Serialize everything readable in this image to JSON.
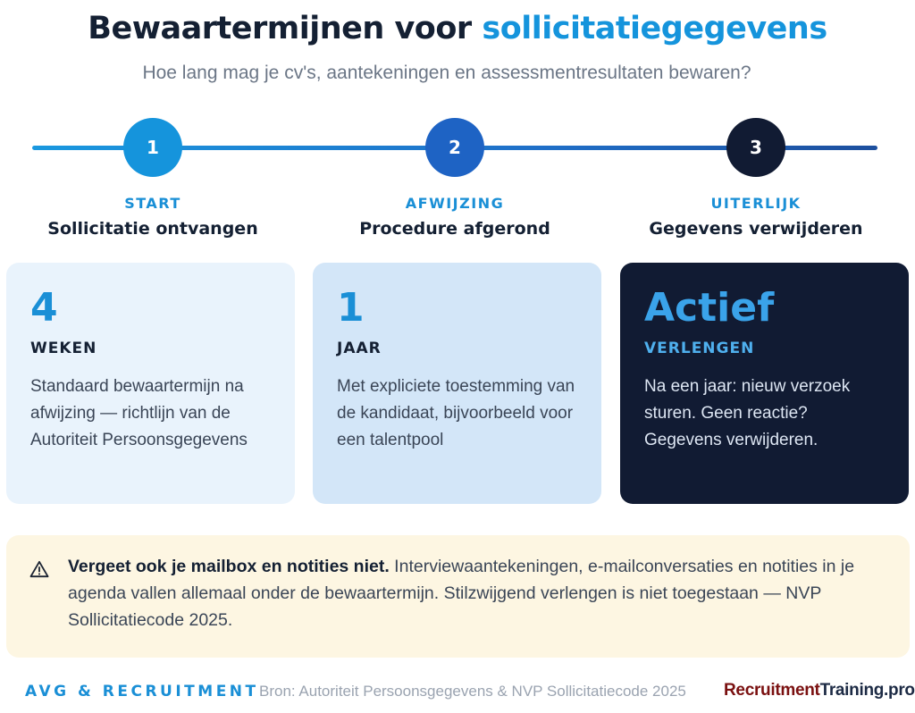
{
  "header": {
    "title_main": "Bewaartermijnen voor ",
    "title_accent": "sollicitatiegegevens",
    "subtitle": "Hoe lang mag je cv's, aantekeningen en assessmentresultaten bewaren?"
  },
  "colors": {
    "accent": "#1594dc",
    "navy": "#111b33",
    "step2": "#1e63c4",
    "note_bg": "#fdf6e2"
  },
  "steps": [
    {
      "number": "1",
      "kicker": "START",
      "label": "Sollicitatie ontvangen"
    },
    {
      "number": "2",
      "kicker": "AFWIJZING",
      "label": "Procedure afgerond"
    },
    {
      "number": "3",
      "kicker": "UITERLIJK",
      "label": "Gegevens verwijderen"
    }
  ],
  "cards": [
    {
      "big": "4",
      "unit": "WEKEN",
      "description": "Standaard bewaartermijn na afwijzing — richtlijn van de Autoriteit Persoonsgegevens"
    },
    {
      "big": "1",
      "unit": "JAAR",
      "description": "Met expliciete toestemming van de kandidaat, bijvoorbeeld voor een talentpool"
    },
    {
      "big": "Actief",
      "unit": "VERLENGEN",
      "description": "Na een jaar: nieuw verzoek sturen. Geen reactie? Gegevens verwijderen."
    }
  ],
  "note": {
    "icon": "warning-icon",
    "bold": "Vergeet ook je mailbox en notities niet.",
    "text": " Interviewaantekeningen, e-mailconversaties en notities in je agenda vallen allemaal onder de bewaartermijn. Stilzwijgend verlengen is niet toegestaan — NVP Sollicitatiecode 2025."
  },
  "footer": {
    "tag": "AVG & RECRUITMENT",
    "source": "Bron: Autoriteit Persoonsgegevens & NVP Sollicitatiecode 2025",
    "brand_part1": "Recruitment",
    "brand_part2": "Training.pro"
  }
}
